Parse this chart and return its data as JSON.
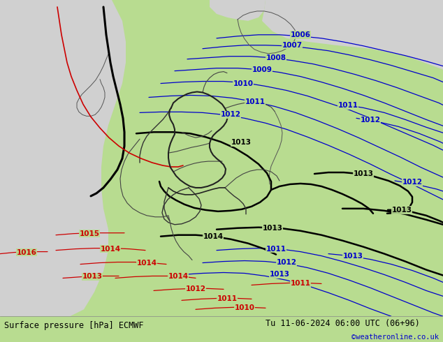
{
  "title_left": "Surface pressure [hPa] ECMWF",
  "title_right": "Tu 11-06-2024 06:00 UTC (06+96)",
  "credit": "©weatheronline.co.uk",
  "bg_color": "#b8dc90",
  "sea_color": "#d0d0d0",
  "footer_bg": "#ffffff",
  "footer_text_color": "#000000",
  "credit_color": "#0000cc",
  "fig_width": 6.34,
  "fig_height": 4.9,
  "dpi": 100,
  "map_xlim": [
    0,
    634
  ],
  "map_ylim": [
    0,
    455
  ],
  "blue_isobar_color": "#0000cc",
  "black_isobar_color": "#000000",
  "red_isobar_color": "#cc0000",
  "border_color": "#888888",
  "blue_lw": 0.9,
  "black_lw": 1.8,
  "red_lw": 0.9,
  "border_lw": 0.7,
  "label_fontsize": 7.5,
  "footer_fontsize": 8.5
}
